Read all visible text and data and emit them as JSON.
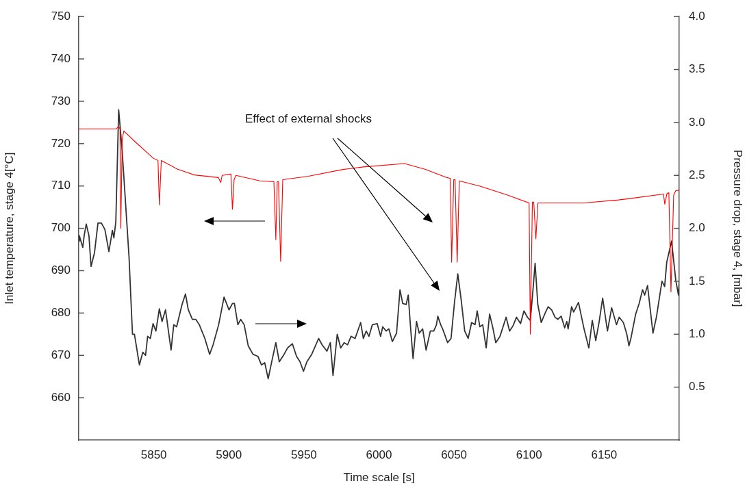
{
  "chart_data": {
    "type": "line",
    "xlabel": "Time scale [s]",
    "ylabel": "Inlet temperature, stage 4[°C]",
    "y2label": "Pressure drop, stage 4, [mbar]",
    "annotations": [
      "Effect of external shocks"
    ],
    "marker": "none",
    "xlim": [
      5800,
      6200
    ],
    "xticks": [
      5850,
      5900,
      5950,
      6000,
      6050,
      6100,
      6150
    ],
    "ylim": [
      650,
      750
    ],
    "yticks": [
      660,
      670,
      680,
      690,
      700,
      710,
      720,
      730,
      740,
      750
    ],
    "y2lim": [
      0,
      4
    ],
    "y2ticks": [
      0.5,
      {
        "value": 1,
        "label": "1.0"
      },
      1.5,
      {
        "value": 2,
        "label": "2.0"
      },
      2.5,
      {
        "value": 3,
        "label": "3.0"
      },
      3.5,
      {
        "value": 4,
        "label": "4.0"
      }
    ],
    "series": [
      {
        "color": "#ff0000",
        "x": [
          5800,
          5825,
          5826.5,
          5827.5,
          5828,
          5829,
          5830,
          5838,
          5849.5,
          5852.8,
          5853.7,
          5855,
          5865.6,
          5877,
          5893,
          5894.6,
          5895.5,
          5901.4,
          5902.4,
          5903.5,
          5904.7,
          5920.7,
          5930,
          5931.3,
          5932.2,
          5933.1,
          5934.5,
          5935.9,
          5953,
          5976,
          5989.6,
          6017,
          6031,
          6045,
          6047.5,
          6048.4,
          6049.8,
          6050.7,
          6052.1,
          6053.5,
          6067.7,
          6086,
          6100,
          6100.8,
          6102.2,
          6103.1,
          6104.5,
          6105.9,
          6113.7,
          6136.6,
          6159.6,
          6168.8,
          6189.5,
          6190.4,
          6191.8,
          6193.1,
          6194.5,
          6196.3,
          6197.7,
          6200
        ],
        "values": [
          723.5,
          723.5,
          724,
          723.5,
          700,
          721,
          723,
          720.3,
          716.6,
          716,
          705.5,
          716,
          714,
          712.6,
          712,
          710.8,
          712.5,
          712.8,
          704.5,
          711.5,
          712.5,
          711.2,
          711,
          697.3,
          711,
          711,
          692.2,
          711.5,
          712.3,
          713.9,
          714.5,
          715.3,
          713.9,
          712,
          711.8,
          692,
          711.5,
          711.5,
          692,
          711.2,
          709.9,
          707.8,
          706,
          675,
          706.2,
          706.2,
          697.5,
          706,
          706,
          706,
          706.7,
          707.1,
          708.1,
          705.7,
          708.2,
          708.4,
          685,
          707.8,
          708.9,
          709
        ]
      },
      {
        "color": "#333333",
        "axis": "y2",
        "x": [
          5800,
          5800.4,
          5802.7,
          5803.6,
          5805,
          5806.8,
          5808.2,
          5810.5,
          5812.8,
          5815.1,
          5817.4,
          5820.1,
          5822.4,
          5823.4,
          5824.7,
          5826.6,
          5828.9,
          5833.5,
          5835.8,
          5837.1,
          5840.4,
          5842.7,
          5844.5,
          5845.9,
          5847.7,
          5849.5,
          5851.4,
          5853.7,
          5855.5,
          5857.8,
          5861.5,
          5863.3,
          5865.2,
          5868.8,
          5871.1,
          5873,
          5875.7,
          5878,
          5880.3,
          5884,
          5887.2,
          5889.5,
          5893.2,
          5896.8,
          5900.1,
          5902.4,
          5903.7,
          5906,
          5907.9,
          5910.2,
          5912.9,
          5916.1,
          5919.4,
          5921.7,
          5923.9,
          5926.2,
          5929,
          5931.3,
          5933.6,
          5936.8,
          5939.1,
          5942.3,
          5945.1,
          5947.4,
          5949.7,
          5952,
          5955.2,
          5959.8,
          5962.1,
          5965.3,
          5967.6,
          5969.4,
          5972.2,
          5974.5,
          5976.8,
          5979.1,
          5981.4,
          5984.1,
          5987.8,
          5989.6,
          5991.5,
          5993.3,
          5995.6,
          5998.8,
          6001.1,
          6002.5,
          6004.8,
          6006.6,
          6008.9,
          6011.7,
          6014,
          6015.8,
          6018.1,
          6019.5,
          6020.9,
          6022.7,
          6025,
          6026.8,
          6029.1,
          6031.4,
          6034.2,
          6036.5,
          6038.3,
          6039.2,
          6041.1,
          6042.4,
          6045.7,
          6048,
          6050.3,
          6052.5,
          6054.8,
          6057.1,
          6059.4,
          6061.7,
          6064,
          6065.4,
          6067.2,
          6069.1,
          6071.4,
          6073.7,
          6076,
          6077.8,
          6080.6,
          6084.7,
          6087,
          6089.3,
          6091.6,
          6094.3,
          6096.6,
          6098.9,
          6100.8,
          6102.2,
          6104,
          6105.8,
          6108.1,
          6110.4,
          6112.7,
          6115,
          6117.3,
          6119.1,
          6121.4,
          6123.7,
          6125.1,
          6126,
          6128.3,
          6129.7,
          6132.9,
          6136.6,
          6139.8,
          6142.1,
          6144.4,
          6146.7,
          6149,
          6152.2,
          6155,
          6158.2,
          6160,
          6162.8,
          6165.1,
          6166.5,
          6167.8,
          6171,
          6173.3,
          6175.6,
          6177,
          6178.9,
          6182.5,
          6184.8,
          6188.5,
          6190.3,
          6191.7,
          6194.9,
          6197.7,
          6199.5,
          6200
        ],
        "values": [
          1.88,
          1.93,
          1.82,
          1.93,
          2.04,
          1.93,
          1.64,
          1.77,
          2.05,
          2.05,
          1.99,
          1.78,
          1.98,
          1.91,
          2.06,
          3.12,
          2.74,
          1.73,
          1.0,
          1.0,
          0.71,
          0.83,
          0.8,
          0.98,
          0.96,
          1.1,
          1.03,
          1.24,
          1.12,
          1.23,
          0.85,
          1.09,
          1.07,
          1.28,
          1.38,
          1.23,
          1.14,
          1.14,
          1.09,
          0.96,
          0.81,
          0.9,
          1.09,
          1.35,
          1.23,
          1.29,
          1.29,
          1.09,
          1.14,
          1.09,
          0.89,
          0.81,
          0.79,
          0.71,
          0.73,
          0.58,
          0.77,
          0.92,
          0.74,
          0.81,
          0.87,
          0.91,
          0.79,
          0.74,
          0.65,
          0.74,
          0.81,
          0.96,
          0.9,
          0.84,
          0.92,
          0.61,
          1.0,
          0.87,
          0.92,
          0.9,
          0.98,
          0.96,
          1.11,
          0.96,
          1.03,
          0.98,
          1.09,
          1.1,
          0.98,
          1.07,
          1.03,
          1.05,
          0.93,
          1.01,
          1.42,
          1.29,
          1.28,
          1.37,
          1.09,
          0.77,
          1.12,
          1.01,
          1.05,
          0.85,
          1.03,
          1.03,
          1.09,
          1.17,
          1.09,
          1.05,
          0.92,
          0.96,
          1.3,
          1.57,
          1.32,
          1.03,
          0.96,
          1.11,
          1.09,
          1.22,
          1.07,
          1.09,
          0.87,
          1.19,
          1.05,
          0.92,
          0.98,
          1.16,
          1.03,
          1.08,
          1.16,
          1.1,
          1.22,
          1.16,
          1.13,
          1.35,
          1.67,
          1.28,
          1.11,
          1.19,
          1.26,
          1.23,
          1.16,
          1.14,
          1.17,
          1.06,
          1.12,
          1.05,
          1.26,
          1.21,
          1.3,
          1.05,
          0.87,
          1.13,
          0.94,
          1.12,
          1.34,
          1.03,
          1.25,
          1.09,
          1.16,
          1.11,
          1.0,
          0.89,
          0.96,
          1.19,
          1.29,
          1.42,
          1.37,
          1.46,
          1.01,
          1.16,
          1.5,
          1.45,
          1.68,
          1.88,
          1.51,
          1.37,
          1.5
        ]
      }
    ]
  }
}
